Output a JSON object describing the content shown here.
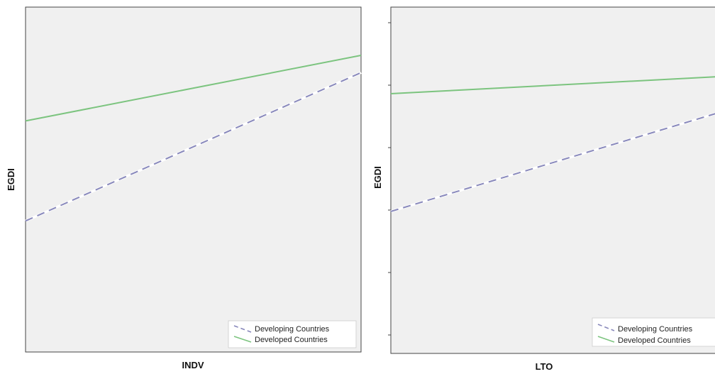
{
  "chart_data": [
    {
      "type": "line",
      "xlabel": "INDV",
      "ylabel": "EGDI",
      "x": [
        0,
        1
      ],
      "xlim": [
        0,
        1
      ],
      "ylim": [
        0,
        1
      ],
      "grid": false,
      "legend_position": "bottom-right",
      "series": [
        {
          "name": "Developing Countries",
          "style": "dashed",
          "color": "#8888bb",
          "values": [
            0.38,
            0.81
          ]
        },
        {
          "name": "Developed Countries",
          "style": "solid",
          "color": "#7cc47f",
          "values": [
            0.67,
            0.86
          ]
        }
      ]
    },
    {
      "type": "line",
      "xlabel": "LTO",
      "ylabel": "EGDI",
      "x": [
        0,
        1
      ],
      "xlim": [
        0,
        1
      ],
      "ylim": [
        0,
        1
      ],
      "grid": false,
      "legend_position": "bottom-right",
      "series": [
        {
          "name": "Developing Countries",
          "style": "dashed",
          "color": "#8888bb",
          "values": [
            0.41,
            0.7
          ]
        },
        {
          "name": "Developed Countries",
          "style": "solid",
          "color": "#7cc47f",
          "values": [
            0.75,
            0.8
          ]
        }
      ]
    }
  ],
  "colors": {
    "plot_background": "#f0f0f0",
    "frame": "#444444"
  }
}
